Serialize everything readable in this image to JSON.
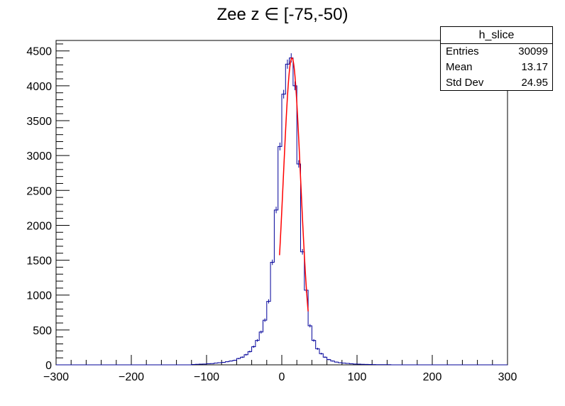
{
  "chart_data": {
    "type": "histogram",
    "title": "Zee z ∈ [-75,-50)",
    "xlabel": "",
    "ylabel": "",
    "xlim": [
      -300,
      300
    ],
    "ylim": [
      0,
      4650
    ],
    "x_ticks": [
      -300,
      -200,
      -100,
      0,
      100,
      200,
      300
    ],
    "x_tick_labels": [
      "−300",
      "−200",
      "−100",
      "0",
      "100",
      "200",
      "300"
    ],
    "y_ticks": [
      0,
      500,
      1000,
      1500,
      2000,
      2500,
      3000,
      3500,
      4000,
      4500
    ],
    "y_tick_labels": [
      "0",
      "500",
      "1000",
      "1500",
      "2000",
      "2500",
      "3000",
      "3500",
      "4000",
      "4500"
    ],
    "bin_width": 5,
    "series": [
      {
        "kind": "histogram",
        "color": "#000099",
        "bins": [
          {
            "x": -120,
            "y": 5
          },
          {
            "x": -115,
            "y": 8
          },
          {
            "x": -110,
            "y": 10
          },
          {
            "x": -105,
            "y": 12
          },
          {
            "x": -100,
            "y": 15
          },
          {
            "x": -95,
            "y": 18
          },
          {
            "x": -90,
            "y": 25
          },
          {
            "x": -85,
            "y": 30
          },
          {
            "x": -80,
            "y": 35
          },
          {
            "x": -75,
            "y": 45
          },
          {
            "x": -70,
            "y": 55
          },
          {
            "x": -65,
            "y": 65
          },
          {
            "x": -60,
            "y": 90
          },
          {
            "x": -55,
            "y": 110
          },
          {
            "x": -50,
            "y": 145
          },
          {
            "x": -45,
            "y": 190
          },
          {
            "x": -40,
            "y": 260
          },
          {
            "x": -35,
            "y": 350
          },
          {
            "x": -30,
            "y": 470
          },
          {
            "x": -25,
            "y": 640
          },
          {
            "x": -20,
            "y": 910
          },
          {
            "x": -15,
            "y": 1470
          },
          {
            "x": -10,
            "y": 2220
          },
          {
            "x": -5,
            "y": 3130
          },
          {
            "x": 0,
            "y": 3880
          },
          {
            "x": 5,
            "y": 4310
          },
          {
            "x": 10,
            "y": 4400
          },
          {
            "x": 15,
            "y": 4000
          },
          {
            "x": 20,
            "y": 2880
          },
          {
            "x": 25,
            "y": 1620
          },
          {
            "x": 30,
            "y": 1070
          },
          {
            "x": 35,
            "y": 560
          },
          {
            "x": 40,
            "y": 350
          },
          {
            "x": 45,
            "y": 230
          },
          {
            "x": 50,
            "y": 160
          },
          {
            "x": 55,
            "y": 110
          },
          {
            "x": 60,
            "y": 75
          },
          {
            "x": 65,
            "y": 55
          },
          {
            "x": 70,
            "y": 40
          },
          {
            "x": 75,
            "y": 30
          },
          {
            "x": 80,
            "y": 25
          },
          {
            "x": 85,
            "y": 20
          },
          {
            "x": 90,
            "y": 15
          },
          {
            "x": 95,
            "y": 12
          },
          {
            "x": 100,
            "y": 10
          },
          {
            "x": 105,
            "y": 8
          },
          {
            "x": 110,
            "y": 6
          },
          {
            "x": 115,
            "y": 5
          },
          {
            "x": 120,
            "y": 4
          },
          {
            "x": 125,
            "y": 3
          },
          {
            "x": 130,
            "y": 3
          },
          {
            "x": 135,
            "y": 2
          },
          {
            "x": 140,
            "y": 2
          }
        ]
      },
      {
        "kind": "fit",
        "color": "#ff0000",
        "function": "gaussian",
        "amplitude": 4400,
        "mean": 13.5,
        "sigma": 11.5,
        "range": [
          -3,
          35
        ]
      }
    ],
    "stats_box": {
      "title": "h_slice",
      "rows": [
        {
          "label": "Entries",
          "value": "30099"
        },
        {
          "label": "Mean",
          "value": "13.17"
        },
        {
          "label": "Std Dev",
          "value": "24.95"
        }
      ]
    }
  }
}
